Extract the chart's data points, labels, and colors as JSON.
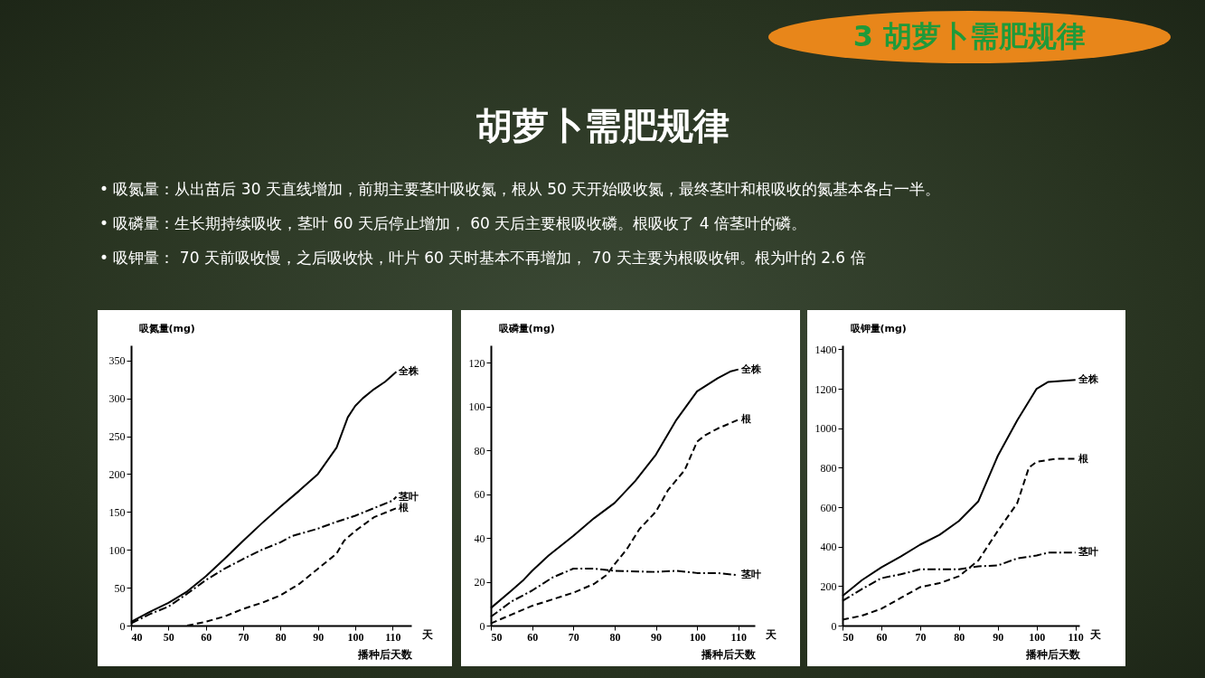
{
  "chart_data": [
    {
      "type": "other",
      "title": "胡萝卜需肥规律",
      "annotations": [
        "3 胡萝卜需肥规律",
        "• 吸氮量：从出苗后 30 天直线增加，前期主要茎叶吸收氮，根从 50 天开始吸收氮，最终茎叶和根吸收的氮基本各占一半。",
        "• 吸磷量：生长期持续吸收，茎叶 60 天后停止增加， 60 天后主要根吸收磷。根吸收了 4 倍茎叶的磷。",
        "• 吸钾量： 70 天前吸收慢，之后吸收快，叶片 60 天时基本不再增加， 70 天主要为根吸收钾。根为叶的 2.6 倍"
      ]
    },
    {
      "type": "line",
      "xlabel": "播种后天数",
      "ylabel": "吸氮量(mg)",
      "annotations": [
        "天"
      ],
      "xlim": [
        40,
        115
      ],
      "xticks": [
        40,
        50,
        60,
        70,
        80,
        90,
        100,
        110
      ],
      "ylim": [
        0,
        370
      ],
      "yticks": [
        0,
        50,
        100,
        150,
        200,
        250,
        300,
        350
      ],
      "grid": false,
      "series": [
        {
          "name": "全株",
          "color": "#000000",
          "line_style": "solid",
          "x": [
            40,
            45,
            50,
            55,
            60,
            65,
            70,
            75,
            80,
            85,
            90,
            95,
            98,
            100,
            102,
            105,
            108,
            111
          ],
          "values": [
            5,
            18,
            30,
            45,
            65,
            88,
            112,
            135,
            157,
            178,
            200,
            235,
            275,
            290,
            300,
            312,
            322,
            335
          ]
        },
        {
          "name": "茎叶",
          "color": "#000000",
          "line_style": "dashdot",
          "x": [
            40,
            45,
            50,
            55,
            60,
            65,
            70,
            75,
            80,
            83,
            90,
            95,
            100,
            105,
            110,
            111
          ],
          "values": [
            3,
            15,
            25,
            42,
            60,
            75,
            88,
            100,
            110,
            118,
            128,
            137,
            145,
            155,
            165,
            170
          ]
        },
        {
          "name": "根",
          "color": "#000000",
          "line_style": "dashed",
          "x": [
            55,
            60,
            65,
            70,
            75,
            80,
            85,
            90,
            95,
            97,
            100,
            105,
            111
          ],
          "values": [
            0,
            5,
            12,
            22,
            30,
            40,
            55,
            75,
            95,
            112,
            125,
            143,
            155
          ]
        }
      ]
    },
    {
      "type": "line",
      "xlabel": "播种后天数",
      "ylabel": "吸磷量(mg)",
      "annotations": [
        "天"
      ],
      "xlim": [
        50,
        114
      ],
      "xticks": [
        50,
        60,
        70,
        80,
        90,
        100,
        110
      ],
      "ylim": [
        0,
        128
      ],
      "yticks": [
        0,
        20,
        40,
        60,
        80,
        100,
        120
      ],
      "grid": false,
      "series": [
        {
          "name": "全株",
          "color": "#000000",
          "line_style": "solid",
          "x": [
            50,
            55,
            58,
            60,
            64,
            70,
            75,
            80,
            85,
            90,
            95,
            100,
            105,
            108,
            110
          ],
          "values": [
            8,
            16,
            21,
            25,
            32,
            41,
            49,
            56,
            66,
            78,
            94,
            107,
            113,
            116,
            117
          ]
        },
        {
          "name": "茎叶",
          "color": "#000000",
          "line_style": "dashdot",
          "x": [
            50,
            55,
            60,
            65,
            70,
            75,
            80,
            90,
            95,
            100,
            105,
            110
          ],
          "values": [
            4,
            11,
            16,
            22,
            26,
            26,
            25,
            24.5,
            25,
            24,
            24,
            23
          ]
        },
        {
          "name": "根",
          "color": "#000000",
          "line_style": "dashed",
          "x": [
            50,
            55,
            60,
            65,
            70,
            75,
            78,
            80,
            83,
            86,
            90,
            93,
            97,
            100,
            102,
            105,
            110
          ],
          "values": [
            1,
            5,
            9,
            12,
            15,
            19,
            23,
            28,
            35,
            44,
            52,
            62,
            71,
            84,
            87,
            90,
            94
          ]
        }
      ]
    },
    {
      "type": "line",
      "xlabel": "播种后天数",
      "ylabel": "吸钾量(mg)",
      "annotations": [
        "天"
      ],
      "xlim": [
        50,
        111
      ],
      "xticks": [
        50,
        60,
        70,
        80,
        90,
        100,
        110
      ],
      "ylim": [
        0,
        1420
      ],
      "yticks": [
        0,
        200,
        400,
        600,
        800,
        1000,
        1200,
        1400
      ],
      "grid": false,
      "series": [
        {
          "name": "全株",
          "color": "#000000",
          "line_style": "solid",
          "x": [
            50,
            55,
            60,
            65,
            70,
            75,
            80,
            85,
            90,
            95,
            100,
            103,
            110
          ],
          "values": [
            150,
            230,
            295,
            350,
            410,
            460,
            530,
            630,
            860,
            1040,
            1200,
            1235,
            1245
          ]
        },
        {
          "name": "茎叶",
          "color": "#000000",
          "line_style": "dashdot",
          "x": [
            50,
            55,
            60,
            65,
            70,
            75,
            80,
            85,
            90,
            95,
            100,
            103,
            110
          ],
          "values": [
            125,
            185,
            240,
            260,
            285,
            285,
            285,
            300,
            305,
            340,
            355,
            370,
            370
          ]
        },
        {
          "name": "根",
          "color": "#000000",
          "line_style": "dashed",
          "x": [
            50,
            55,
            60,
            65,
            70,
            75,
            80,
            85,
            90,
            95,
            98,
            100,
            105,
            110
          ],
          "values": [
            30,
            50,
            85,
            140,
            195,
            215,
            250,
            330,
            480,
            620,
            800,
            830,
            845,
            845
          ]
        }
      ]
    }
  ]
}
